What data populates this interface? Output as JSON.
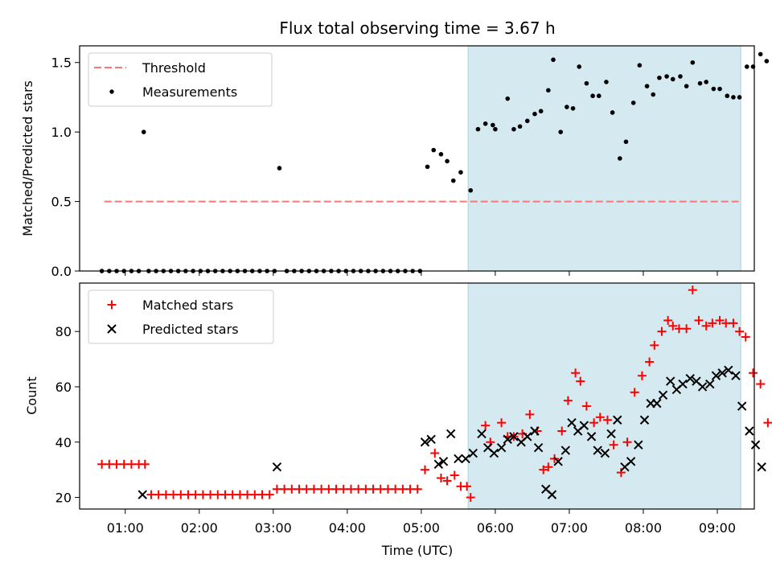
{
  "chart_data": [
    {
      "type": "scatter",
      "title": "Flux total observing time = 3.67 h",
      "xlabel": "",
      "ylabel": "Matched/Predicted stars",
      "ylim": [
        0,
        1.62
      ],
      "xlim": [
        "00:23",
        "09:30"
      ],
      "yticks": [
        "0.0",
        "0.5",
        "1.0",
        "1.5"
      ],
      "shaded_x_range": [
        "05:38",
        "09:19"
      ],
      "shade_color": "#d4eaf0",
      "legend_placement": "top-left",
      "threshold": {
        "name": "Threshold",
        "y": 0.5,
        "x_range": [
          "00:43",
          "09:18"
        ],
        "color": "#f87878",
        "style": "dashed"
      },
      "series": [
        {
          "name": "Measurements",
          "color": "#000000",
          "marker": "dot",
          "points": [
            [
              "00:41",
              0
            ],
            [
              "00:47",
              0
            ],
            [
              "00:53",
              0
            ],
            [
              "00:59",
              0
            ],
            [
              "01:05",
              0
            ],
            [
              "01:11",
              0
            ],
            [
              "01:15",
              1.0
            ],
            [
              "01:19",
              0
            ],
            [
              "01:25",
              0
            ],
            [
              "01:31",
              0
            ],
            [
              "01:37",
              0
            ],
            [
              "01:43",
              0
            ],
            [
              "01:49",
              0
            ],
            [
              "01:55",
              0
            ],
            [
              "02:01",
              0
            ],
            [
              "02:07",
              0
            ],
            [
              "02:13",
              0
            ],
            [
              "02:19",
              0
            ],
            [
              "02:25",
              0
            ],
            [
              "02:31",
              0
            ],
            [
              "02:37",
              0
            ],
            [
              "02:43",
              0
            ],
            [
              "02:49",
              0
            ],
            [
              "02:55",
              0
            ],
            [
              "03:01",
              0
            ],
            [
              "03:05",
              0.74
            ],
            [
              "03:11",
              0
            ],
            [
              "03:17",
              0
            ],
            [
              "03:23",
              0
            ],
            [
              "03:29",
              0
            ],
            [
              "03:35",
              0
            ],
            [
              "03:41",
              0
            ],
            [
              "03:47",
              0
            ],
            [
              "03:53",
              0
            ],
            [
              "03:59",
              0
            ],
            [
              "04:05",
              0
            ],
            [
              "04:11",
              0
            ],
            [
              "04:17",
              0
            ],
            [
              "04:23",
              0
            ],
            [
              "04:29",
              0
            ],
            [
              "04:35",
              0
            ],
            [
              "04:41",
              0
            ],
            [
              "04:47",
              0
            ],
            [
              "04:53",
              0
            ],
            [
              "04:59",
              0
            ],
            [
              "05:05",
              0.75
            ],
            [
              "05:10",
              0.87
            ],
            [
              "05:16",
              0.84
            ],
            [
              "05:21",
              0.79
            ],
            [
              "05:26",
              0.65
            ],
            [
              "05:32",
              0.71
            ],
            [
              "05:40",
              0.58
            ],
            [
              "05:46",
              1.02
            ],
            [
              "05:52",
              1.06
            ],
            [
              "05:58",
              1.05
            ],
            [
              "06:00",
              1.02
            ],
            [
              "06:10",
              1.24
            ],
            [
              "06:15",
              1.02
            ],
            [
              "06:20",
              1.04
            ],
            [
              "06:26",
              1.08
            ],
            [
              "06:32",
              1.13
            ],
            [
              "06:37",
              1.15
            ],
            [
              "06:43",
              1.3
            ],
            [
              "06:47",
              1.52
            ],
            [
              "06:53",
              1.0
            ],
            [
              "06:58",
              1.18
            ],
            [
              "07:03",
              1.17
            ],
            [
              "07:08",
              1.47
            ],
            [
              "07:14",
              1.35
            ],
            [
              "07:19",
              1.26
            ],
            [
              "07:24",
              1.26
            ],
            [
              "07:30",
              1.36
            ],
            [
              "07:35",
              1.14
            ],
            [
              "07:41",
              0.81
            ],
            [
              "07:46",
              0.93
            ],
            [
              "07:52",
              1.21
            ],
            [
              "07:57",
              1.48
            ],
            [
              "08:03",
              1.33
            ],
            [
              "08:08",
              1.27
            ],
            [
              "08:13",
              1.39
            ],
            [
              "08:19",
              1.4
            ],
            [
              "08:24",
              1.38
            ],
            [
              "08:30",
              1.4
            ],
            [
              "08:35",
              1.33
            ],
            [
              "08:40",
              1.5
            ],
            [
              "08:46",
              1.35
            ],
            [
              "08:51",
              1.36
            ],
            [
              "08:57",
              1.31
            ],
            [
              "09:02",
              1.31
            ],
            [
              "09:08",
              1.26
            ],
            [
              "09:13",
              1.25
            ],
            [
              "09:18",
              1.25
            ],
            [
              "09:24",
              1.47
            ],
            [
              "09:29",
              1.47
            ],
            [
              "09:35",
              1.56
            ],
            [
              "09:40",
              1.51
            ]
          ]
        }
      ]
    },
    {
      "type": "scatter",
      "title": "",
      "xlabel": "Time (UTC)",
      "ylabel": "Count",
      "ylim": [
        15.8,
        97.5
      ],
      "xlim": [
        "00:23",
        "09:30"
      ],
      "yticks": [
        "20",
        "40",
        "60",
        "80"
      ],
      "xticks": [
        "01:00",
        "02:00",
        "03:00",
        "04:00",
        "05:00",
        "06:00",
        "07:00",
        "08:00",
        "09:00"
      ],
      "shaded_x_range": [
        "05:38",
        "09:19"
      ],
      "shade_color": "#d4eaf0",
      "legend_placement": "top-left",
      "series": [
        {
          "name": "Matched stars",
          "color": "#ff0000",
          "marker": "plus",
          "points": [
            [
              "00:41",
              32
            ],
            [
              "00:47",
              32
            ],
            [
              "00:53",
              32
            ],
            [
              "00:59",
              32
            ],
            [
              "01:05",
              32
            ],
            [
              "01:11",
              32
            ],
            [
              "01:16",
              32
            ],
            [
              "01:21",
              21
            ],
            [
              "01:27",
              21
            ],
            [
              "01:33",
              21
            ],
            [
              "01:39",
              21
            ],
            [
              "01:45",
              21
            ],
            [
              "01:51",
              21
            ],
            [
              "01:57",
              21
            ],
            [
              "02:03",
              21
            ],
            [
              "02:09",
              21
            ],
            [
              "02:15",
              21
            ],
            [
              "02:21",
              21
            ],
            [
              "02:27",
              21
            ],
            [
              "02:33",
              21
            ],
            [
              "02:39",
              21
            ],
            [
              "02:45",
              21
            ],
            [
              "02:51",
              21
            ],
            [
              "02:57",
              21
            ],
            [
              "03:03",
              23
            ],
            [
              "03:09",
              23
            ],
            [
              "03:15",
              23
            ],
            [
              "03:21",
              23
            ],
            [
              "03:27",
              23
            ],
            [
              "03:33",
              23
            ],
            [
              "03:39",
              23
            ],
            [
              "03:45",
              23
            ],
            [
              "03:51",
              23
            ],
            [
              "03:57",
              23
            ],
            [
              "04:03",
              23
            ],
            [
              "04:09",
              23
            ],
            [
              "04:15",
              23
            ],
            [
              "04:21",
              23
            ],
            [
              "04:27",
              23
            ],
            [
              "04:33",
              23
            ],
            [
              "04:39",
              23
            ],
            [
              "04:45",
              23
            ],
            [
              "04:51",
              23
            ],
            [
              "04:57",
              23
            ],
            [
              "05:03",
              30
            ],
            [
              "05:11",
              36
            ],
            [
              "05:16",
              27
            ],
            [
              "05:21",
              26
            ],
            [
              "05:27",
              28
            ],
            [
              "05:32",
              24
            ],
            [
              "05:37",
              24
            ],
            [
              "05:40",
              20
            ],
            [
              "05:52",
              46
            ],
            [
              "05:56",
              40
            ],
            [
              "06:05",
              47
            ],
            [
              "06:10",
              42
            ],
            [
              "06:15",
              42
            ],
            [
              "06:22",
              43
            ],
            [
              "06:28",
              50
            ],
            [
              "06:34",
              44
            ],
            [
              "06:39",
              30
            ],
            [
              "06:43",
              31
            ],
            [
              "06:48",
              34
            ],
            [
              "06:54",
              44
            ],
            [
              "06:59",
              55
            ],
            [
              "07:05",
              65
            ],
            [
              "07:09",
              62
            ],
            [
              "07:14",
              53
            ],
            [
              "07:20",
              47
            ],
            [
              "07:25",
              49
            ],
            [
              "07:31",
              48
            ],
            [
              "07:36",
              39
            ],
            [
              "07:42",
              29
            ],
            [
              "07:47",
              40
            ],
            [
              "07:53",
              58
            ],
            [
              "07:59",
              64
            ],
            [
              "08:05",
              69
            ],
            [
              "08:09",
              75
            ],
            [
              "08:15",
              80
            ],
            [
              "08:20",
              84
            ],
            [
              "08:24",
              82
            ],
            [
              "08:29",
              81
            ],
            [
              "08:35",
              81
            ],
            [
              "08:40",
              95
            ],
            [
              "08:45",
              84
            ],
            [
              "08:51",
              82
            ],
            [
              "08:56",
              83
            ],
            [
              "09:02",
              84
            ],
            [
              "09:07",
              83
            ],
            [
              "09:13",
              83
            ],
            [
              "09:18",
              80
            ],
            [
              "09:23",
              78
            ],
            [
              "09:29",
              65
            ],
            [
              "09:35",
              61
            ],
            [
              "09:41",
              47
            ]
          ]
        },
        {
          "name": "Predicted stars",
          "color": "#000000",
          "marker": "x",
          "points": [
            [
              "01:14",
              21
            ],
            [
              "03:03",
              31
            ],
            [
              "05:03",
              40
            ],
            [
              "05:08",
              41
            ],
            [
              "05:14",
              32
            ],
            [
              "05:18",
              33
            ],
            [
              "05:24",
              43
            ],
            [
              "05:30",
              34
            ],
            [
              "05:36",
              34
            ],
            [
              "05:42",
              36
            ],
            [
              "05:49",
              43
            ],
            [
              "05:54",
              38
            ],
            [
              "05:59",
              36
            ],
            [
              "06:05",
              38
            ],
            [
              "06:10",
              41
            ],
            [
              "06:15",
              42
            ],
            [
              "06:21",
              40
            ],
            [
              "06:26",
              42
            ],
            [
              "06:32",
              44
            ],
            [
              "06:35",
              38
            ],
            [
              "06:41",
              23
            ],
            [
              "06:46",
              21
            ],
            [
              "06:51",
              33
            ],
            [
              "06:57",
              37
            ],
            [
              "07:02",
              47
            ],
            [
              "07:07",
              44
            ],
            [
              "07:12",
              46
            ],
            [
              "07:18",
              42
            ],
            [
              "07:23",
              37
            ],
            [
              "07:29",
              36
            ],
            [
              "07:34",
              43
            ],
            [
              "07:39",
              48
            ],
            [
              "07:45",
              31
            ],
            [
              "07:50",
              33
            ],
            [
              "07:56",
              39
            ],
            [
              "08:01",
              48
            ],
            [
              "08:06",
              54
            ],
            [
              "08:11",
              54
            ],
            [
              "08:16",
              57
            ],
            [
              "08:22",
              62
            ],
            [
              "08:27",
              59
            ],
            [
              "08:32",
              61
            ],
            [
              "08:38",
              63
            ],
            [
              "08:43",
              62
            ],
            [
              "08:48",
              60
            ],
            [
              "08:54",
              61
            ],
            [
              "08:59",
              64
            ],
            [
              "09:04",
              65
            ],
            [
              "09:09",
              66
            ],
            [
              "09:15",
              64
            ],
            [
              "09:20",
              53
            ],
            [
              "09:26",
              44
            ],
            [
              "09:31",
              39
            ],
            [
              "09:36",
              31
            ]
          ]
        }
      ]
    }
  ]
}
